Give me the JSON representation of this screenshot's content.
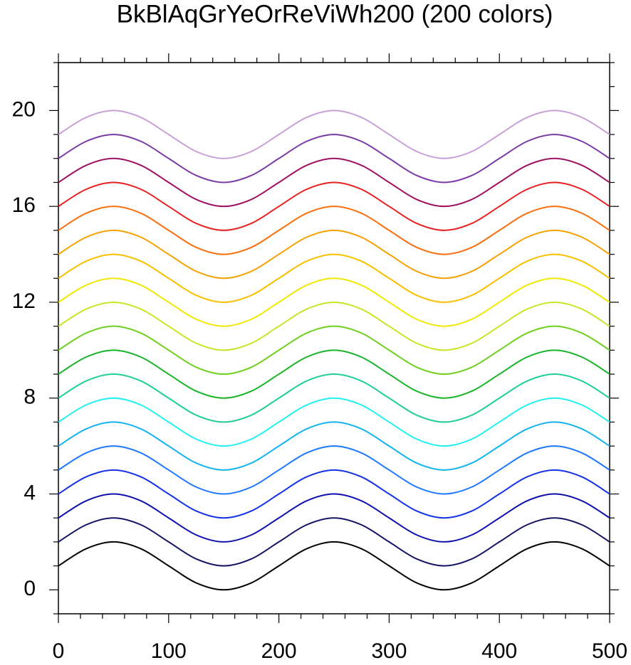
{
  "chart_data": {
    "type": "line",
    "title": "BkBlAqGrYeOrReViWh200 (200 colors)",
    "x": [
      0,
      25,
      50,
      75,
      100,
      125,
      150,
      175,
      200,
      225,
      250,
      275,
      300,
      325,
      350,
      375,
      400,
      425,
      450,
      475,
      500
    ],
    "xlim": [
      0,
      500
    ],
    "xticks": [
      0,
      100,
      200,
      300,
      400,
      500
    ],
    "xminorticks": [
      20,
      40,
      60,
      80,
      120,
      140,
      160,
      180,
      220,
      240,
      260,
      280,
      320,
      340,
      360,
      380,
      420,
      440,
      460,
      480
    ],
    "ylim": [
      -1,
      22
    ],
    "yticks": [
      0,
      4,
      8,
      12,
      16,
      20
    ],
    "yminorticks": [
      -1,
      1,
      2,
      3,
      5,
      6,
      7,
      9,
      10,
      11,
      13,
      14,
      15,
      17,
      18,
      19,
      21,
      22
    ],
    "series": [
      {
        "color": "#000000",
        "values": [
          1,
          1.71,
          2,
          1.71,
          1,
          0.29,
          0,
          0.29,
          1,
          1.71,
          2,
          1.71,
          1,
          0.29,
          0,
          0.29,
          1,
          1.71,
          2,
          1.71,
          1
        ]
      },
      {
        "color": "#141466",
        "values": [
          2,
          2.71,
          3,
          2.71,
          2,
          1.29,
          1,
          1.29,
          2,
          2.71,
          3,
          2.71,
          2,
          1.29,
          1,
          1.29,
          2,
          2.71,
          3,
          2.71,
          2
        ]
      },
      {
        "color": "#1010b0",
        "values": [
          3,
          3.71,
          4,
          3.71,
          3,
          2.29,
          2,
          2.29,
          3,
          3.71,
          4,
          3.71,
          3,
          2.29,
          2,
          2.29,
          3,
          3.71,
          4,
          3.71,
          3
        ]
      },
      {
        "color": "#1432e6",
        "values": [
          4,
          4.71,
          5,
          4.71,
          4,
          3.29,
          3,
          3.29,
          4,
          4.71,
          5,
          4.71,
          4,
          3.29,
          3,
          3.29,
          4,
          4.71,
          5,
          4.71,
          4
        ]
      },
      {
        "color": "#1e78ff",
        "values": [
          5,
          5.71,
          6,
          5.71,
          5,
          4.29,
          4,
          4.29,
          5,
          5.71,
          6,
          5.71,
          5,
          4.29,
          4,
          4.29,
          5,
          5.71,
          6,
          5.71,
          5
        ]
      },
      {
        "color": "#14b4f0",
        "values": [
          6,
          6.71,
          7,
          6.71,
          6,
          5.29,
          5,
          5.29,
          6,
          6.71,
          7,
          6.71,
          6,
          5.29,
          5,
          5.29,
          6,
          6.71,
          7,
          6.71,
          6
        ]
      },
      {
        "color": "#20f0f0",
        "values": [
          7,
          7.71,
          8,
          7.71,
          7,
          6.29,
          6,
          6.29,
          7,
          7.71,
          8,
          7.71,
          7,
          6.29,
          6,
          6.29,
          7,
          7.71,
          8,
          7.71,
          7
        ]
      },
      {
        "color": "#20d090",
        "values": [
          8,
          8.71,
          9,
          8.71,
          8,
          7.29,
          7,
          7.29,
          8,
          8.71,
          9,
          8.71,
          8,
          7.29,
          7,
          7.29,
          8,
          8.71,
          9,
          8.71,
          8
        ]
      },
      {
        "color": "#18b428",
        "values": [
          9,
          9.71,
          10,
          9.71,
          9,
          8.29,
          8,
          8.29,
          9,
          9.71,
          10,
          9.71,
          9,
          8.29,
          8,
          8.29,
          9,
          9.71,
          10,
          9.71,
          9
        ]
      },
      {
        "color": "#70d020",
        "values": [
          10,
          10.71,
          11,
          10.71,
          10,
          9.29,
          9,
          9.29,
          10,
          10.71,
          11,
          10.71,
          10,
          9.29,
          9,
          9.29,
          10,
          10.71,
          11,
          10.71,
          10
        ]
      },
      {
        "color": "#c8e628",
        "values": [
          11,
          11.71,
          12,
          11.71,
          11,
          10.29,
          10,
          10.29,
          11,
          11.71,
          12,
          11.71,
          11,
          10.29,
          10,
          10.29,
          11,
          11.71,
          12,
          11.71,
          11
        ]
      },
      {
        "color": "#f0e800",
        "values": [
          12,
          12.71,
          13,
          12.71,
          12,
          11.29,
          11,
          11.29,
          12,
          12.71,
          13,
          12.71,
          12,
          11.29,
          11,
          11.29,
          12,
          12.71,
          13,
          12.71,
          12
        ]
      },
      {
        "color": "#f8c000",
        "values": [
          13,
          13.71,
          14,
          13.71,
          13,
          12.29,
          12,
          12.29,
          13,
          13.71,
          14,
          13.71,
          13,
          12.29,
          12,
          12.29,
          13,
          13.71,
          14,
          13.71,
          13
        ]
      },
      {
        "color": "#f8a000",
        "values": [
          14,
          14.71,
          15,
          14.71,
          14,
          13.29,
          13,
          13.29,
          14,
          14.71,
          15,
          14.71,
          14,
          13.29,
          13,
          13.29,
          14,
          14.71,
          15,
          14.71,
          14
        ]
      },
      {
        "color": "#f87010",
        "values": [
          15,
          15.71,
          16,
          15.71,
          15,
          14.29,
          14,
          14.29,
          15,
          15.71,
          16,
          15.71,
          15,
          14.29,
          14,
          14.29,
          15,
          15.71,
          16,
          15.71,
          15
        ]
      },
      {
        "color": "#e82020",
        "values": [
          16,
          16.71,
          17,
          16.71,
          16,
          15.29,
          15,
          15.29,
          16,
          16.71,
          17,
          16.71,
          16,
          15.29,
          15,
          15.29,
          16,
          16.71,
          17,
          16.71,
          16
        ]
      },
      {
        "color": "#a01060",
        "values": [
          17,
          17.71,
          18,
          17.71,
          17,
          16.29,
          16,
          16.29,
          17,
          17.71,
          18,
          17.71,
          17,
          16.29,
          16,
          16.29,
          17,
          17.71,
          18,
          17.71,
          17
        ]
      },
      {
        "color": "#7a3aa6",
        "values": [
          18,
          18.71,
          19,
          18.71,
          18,
          17.29,
          17,
          17.29,
          18,
          18.71,
          19,
          18.71,
          18,
          17.29,
          17,
          17.29,
          18,
          18.71,
          19,
          18.71,
          18
        ]
      },
      {
        "color": "#c8a0d8",
        "values": [
          19,
          19.71,
          20,
          19.71,
          19,
          18.29,
          18,
          18.29,
          19,
          19.71,
          20,
          19.71,
          19,
          18.29,
          18,
          18.29,
          19,
          19.71,
          20,
          19.71,
          19
        ]
      }
    ]
  }
}
